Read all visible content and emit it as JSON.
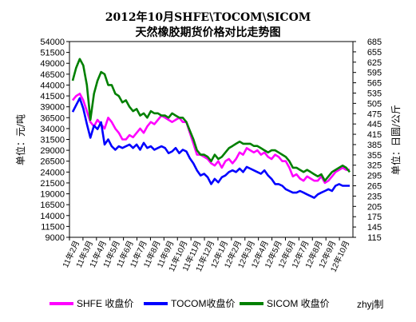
{
  "title": {
    "line1": "2012年10月SHFE\\TOCOM\\SICOM",
    "line2": "天然橡胶期货价格对比走势图"
  },
  "chart_data": {
    "type": "line",
    "ylabel": "单位：元/吨",
    "y2label": "单位：日圆/公斤",
    "ylim": [
      9000,
      54000
    ],
    "y2lim": [
      115,
      685
    ],
    "yticks": [
      9000,
      11500,
      14000,
      16500,
      19000,
      21500,
      24000,
      26500,
      29000,
      31500,
      34000,
      36500,
      39000,
      41500,
      44000,
      46500,
      49000,
      51500,
      54000
    ],
    "y2ticks": [
      115,
      145,
      175,
      205,
      235,
      265,
      295,
      325,
      355,
      385,
      415,
      445,
      475,
      505,
      535,
      565,
      595,
      625,
      655,
      685
    ],
    "x_tick_labels": [
      "11年2月",
      "11年3月",
      "11年4月",
      "11年5月",
      "11年6月",
      "11年7月",
      "11年8月",
      "11年9月",
      "11年10月",
      "11年11月",
      "11年12月",
      "12年1月",
      "12年2月",
      "12年3月",
      "12年4月",
      "12年5月",
      "12年6月",
      "12年7月",
      "12年8月",
      "12年9月",
      "12年10月"
    ],
    "legend_position": "bottom",
    "grid": false,
    "series": [
      {
        "name": "SHFE 收盘价",
        "axis": "left",
        "color": "#ff00ff",
        "values": [
          40500,
          41500,
          42000,
          40500,
          38000,
          35500,
          34500,
          36000,
          35000,
          34000,
          36500,
          35500,
          34000,
          33000,
          31500,
          31500,
          32500,
          32000,
          33000,
          34000,
          33000,
          34500,
          35500,
          35000,
          36000,
          37000,
          36500,
          36000,
          35500,
          36000,
          36500,
          35500,
          35500,
          33000,
          30500,
          28000,
          28000,
          27500,
          27000,
          26000,
          25500,
          26500,
          25000,
          26500,
          27000,
          26000,
          27000,
          28500,
          28000,
          29500,
          29000,
          28500,
          29000,
          28000,
          28500,
          27500,
          27000,
          28000,
          27500,
          26500,
          26500,
          25000,
          23000,
          23500,
          22500,
          22000,
          23000,
          22500,
          22000,
          22000,
          23000,
          21500,
          22000,
          23000,
          24000,
          24500,
          25000,
          24500,
          24500
        ]
      },
      {
        "name": "TOCOM收盘价",
        "axis": "right",
        "color": "#0000ff",
        "values": [
          480,
          500,
          520,
          490,
          445,
          405,
          440,
          430,
          450,
          385,
          400,
          380,
          370,
          380,
          375,
          380,
          385,
          375,
          385,
          370,
          390,
          375,
          380,
          370,
          375,
          380,
          375,
          360,
          365,
          375,
          360,
          370,
          365,
          345,
          330,
          310,
          295,
          300,
          290,
          270,
          285,
          275,
          290,
          295,
          305,
          310,
          305,
          315,
          305,
          320,
          315,
          310,
          305,
          300,
          310,
          295,
          285,
          270,
          270,
          265,
          255,
          250,
          245,
          245,
          250,
          245,
          240,
          235,
          230,
          240,
          245,
          250,
          255,
          250,
          265,
          270,
          265,
          265,
          265
        ]
      },
      {
        "name": "SICOM 收盘价",
        "axis": "left",
        "color": "#008000",
        "values": [
          45000,
          48000,
          50000,
          48500,
          44000,
          36000,
          42000,
          45000,
          47000,
          46500,
          44000,
          44000,
          42000,
          41500,
          40000,
          40500,
          39000,
          38000,
          38500,
          37000,
          37500,
          36500,
          38000,
          37500,
          37500,
          37000,
          37000,
          36500,
          37500,
          37000,
          36500,
          36500,
          35500,
          33500,
          31500,
          29000,
          28000,
          28000,
          27500,
          26500,
          28000,
          27000,
          27500,
          28500,
          29500,
          30000,
          30500,
          31000,
          30500,
          30500,
          30500,
          30000,
          30000,
          29500,
          29000,
          28500,
          29000,
          29000,
          28500,
          28000,
          27500,
          26500,
          25000,
          25000,
          24500,
          24000,
          24500,
          24000,
          23500,
          23000,
          23500,
          22000,
          23000,
          24000,
          24500,
          25000,
          25500,
          25000,
          24000
        ]
      }
    ]
  },
  "footer": {
    "credit": "zhyj制"
  }
}
